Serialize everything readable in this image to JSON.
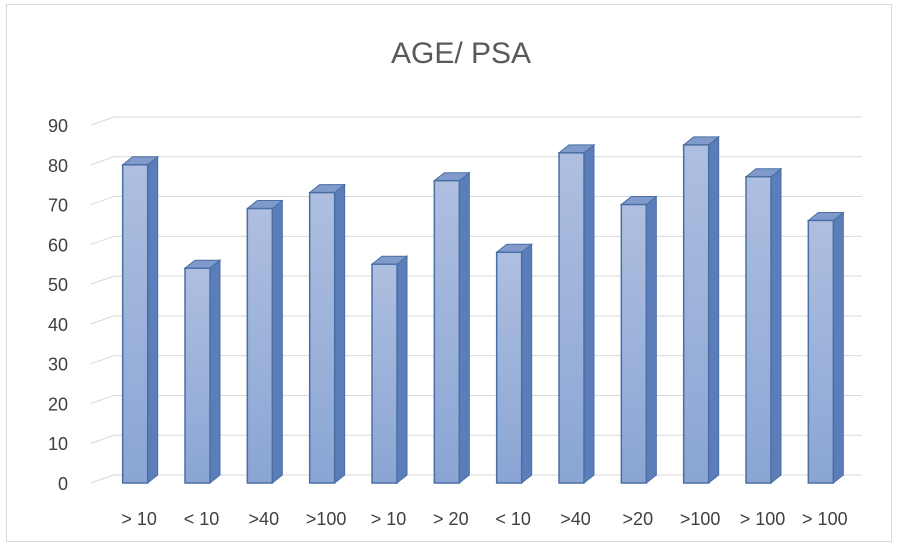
{
  "chart_data": {
    "type": "bar",
    "title": "AGE/ PSA",
    "categories": [
      "> 10",
      "< 10",
      ">40",
      ">100",
      "> 10",
      "> 20",
      "< 10",
      ">40",
      ">20",
      ">100",
      "> 100",
      "> 100"
    ],
    "values": [
      80,
      54,
      69,
      73,
      55,
      76,
      58,
      83,
      70,
      85,
      77,
      66
    ],
    "ylim": [
      0,
      90
    ],
    "yticks": [
      0,
      10,
      20,
      30,
      40,
      50,
      60,
      70,
      80,
      90
    ],
    "grid": true,
    "bar_color": "#8faadc",
    "bar_edge_color": "#4a6fa5",
    "style": "3d-column"
  }
}
